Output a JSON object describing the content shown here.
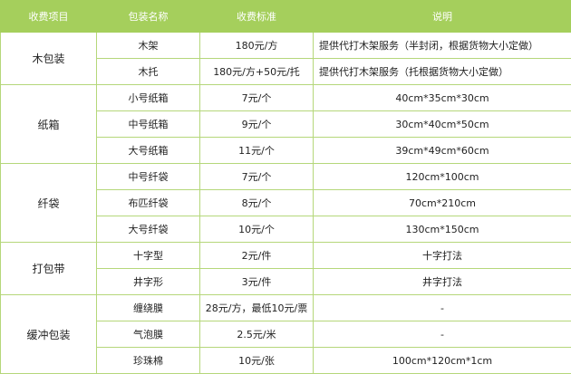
{
  "headers": [
    "收费项目",
    "包装名称",
    "收费标准",
    "说明"
  ],
  "groups": [
    {
      "category": "木包装",
      "rows": [
        {
          "name": "木架",
          "price": "180元/方",
          "note": "提供代打木架服务（半封闭，根据货物大小定做）",
          "align": "left"
        },
        {
          "name": "木托",
          "price": "180元/方+50元/托",
          "note": "提供代打木架服务（托根据货物大小定做）",
          "align": "left"
        }
      ]
    },
    {
      "category": "纸箱",
      "rows": [
        {
          "name": "小号纸箱",
          "price": "7元/个",
          "note": "40cm*35cm*30cm"
        },
        {
          "name": "中号纸箱",
          "price": "9元/个",
          "note": "30cm*40cm*50cm"
        },
        {
          "name": "大号纸箱",
          "price": "11元/个",
          "note": "39cm*49cm*60cm"
        }
      ]
    },
    {
      "category": "纤袋",
      "rows": [
        {
          "name": "中号纤袋",
          "price": "7元/个",
          "note": "120cm*100cm"
        },
        {
          "name": "布匹纤袋",
          "price": "8元/个",
          "note": "70cm*210cm"
        },
        {
          "name": "大号纤袋",
          "price": "10元/个",
          "note": "130cm*150cm"
        }
      ]
    },
    {
      "category": "打包带",
      "rows": [
        {
          "name": "十字型",
          "price": "2元/件",
          "note": "十字打法"
        },
        {
          "name": "井字形",
          "price": "3元/件",
          "note": "井字打法"
        }
      ]
    },
    {
      "category": "缓冲包装",
      "rows": [
        {
          "name": "缠绕膜",
          "price": "28元/方，最低10元/票",
          "note": "-"
        },
        {
          "name": "气泡膜",
          "price": "2.5元/米",
          "note": "-"
        },
        {
          "name": "珍珠棉",
          "price": "10元/张",
          "note": "100cm*120cm*1cm"
        }
      ]
    }
  ],
  "colors": {
    "header_bg": "#a5cf5c",
    "border": "#b5d77a"
  }
}
